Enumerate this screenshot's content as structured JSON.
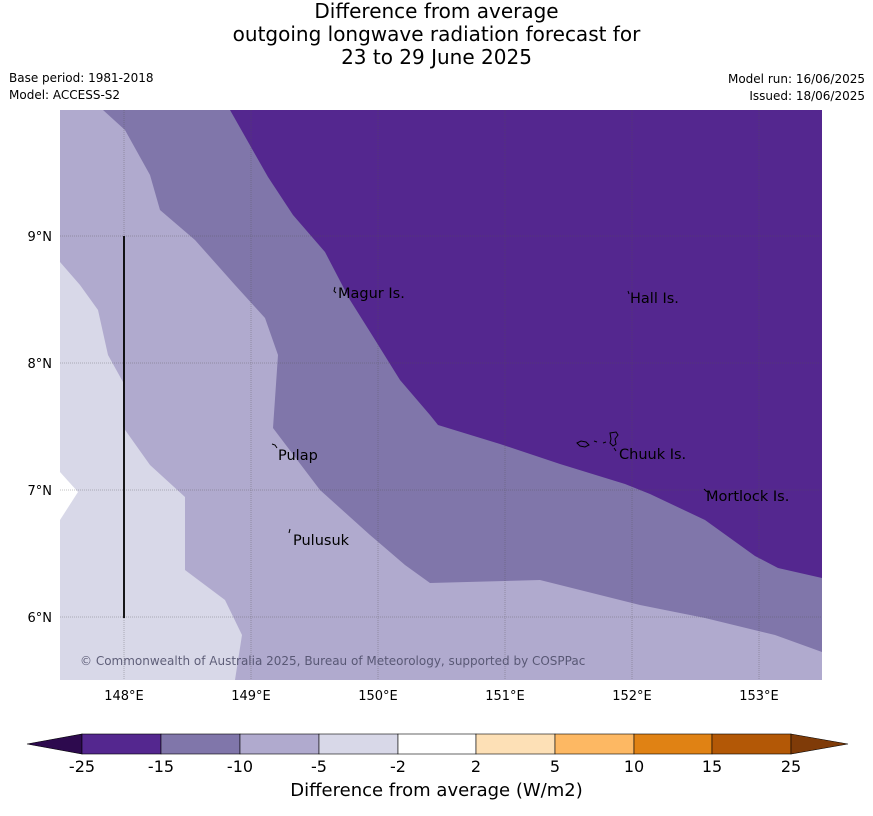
{
  "title": {
    "line1": "Difference from average",
    "line2": "outgoing longwave radiation forecast for",
    "line3": "23 to 29 June 2025"
  },
  "meta": {
    "base_period": "Base period: 1981-2018",
    "model": "Model: ACCESS-S2",
    "model_run": "Model run: 16/06/2025",
    "issued": "Issued: 18/06/2025"
  },
  "map": {
    "lon_ticks": [
      "148°E",
      "149°E",
      "150°E",
      "151°E",
      "152°E",
      "153°E"
    ],
    "lat_ticks": [
      "9°N",
      "8°N",
      "7°N",
      "6°N"
    ],
    "places": [
      {
        "name": "Magur Is."
      },
      {
        "name": "Hall Is."
      },
      {
        "name": "Pulap"
      },
      {
        "name": "Chuuk Is."
      },
      {
        "name": "Mortlock Is."
      },
      {
        "name": "Pulusuk"
      }
    ],
    "copyright": "© Commonwealth of Australia 2025, Bureau of Meteorology, supported by COSPPac"
  },
  "colorbar": {
    "label": "Difference from average (W/m2)",
    "ticks": [
      "-25",
      "-15",
      "-10",
      "-5",
      "-2",
      "2",
      "5",
      "10",
      "15",
      "25"
    ],
    "colors": {
      "under": "#2d0a4e",
      "c1": "#54278f",
      "c2": "#8076aa",
      "c3": "#b0aace",
      "c4": "#d8d8e8",
      "c5": "#ffffff",
      "c6": "#fde0b6",
      "c7": "#fdb863",
      "c8": "#e08214",
      "c9": "#b35806",
      "over": "#7f3b08"
    }
  }
}
